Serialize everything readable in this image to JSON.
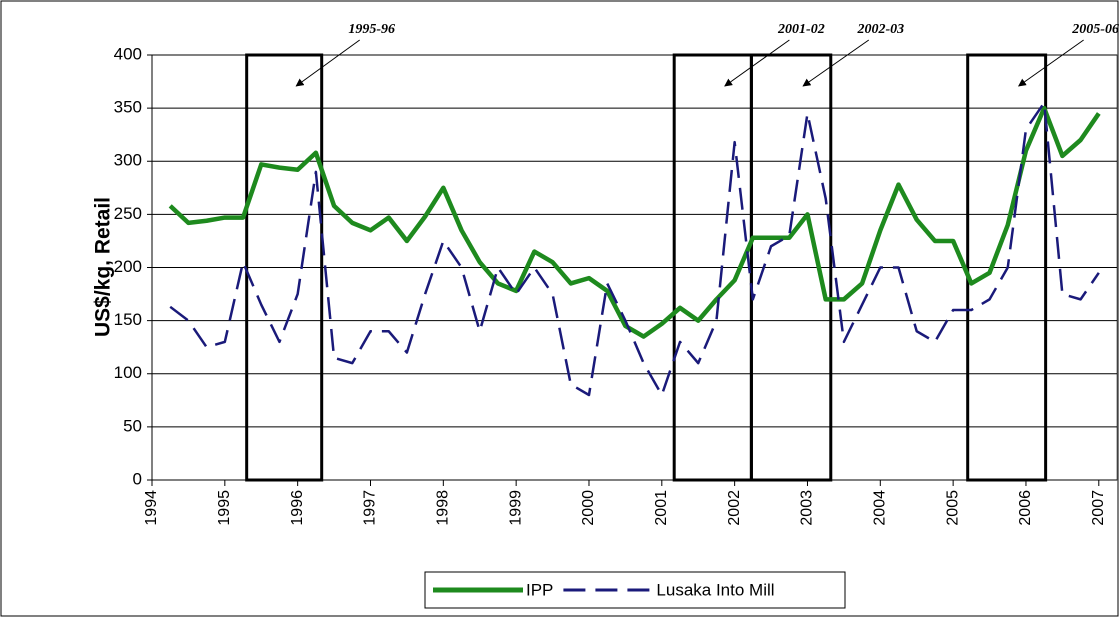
{
  "chart_data": {
    "type": "line",
    "y_label": "US$/kg, Retail",
    "x": [
      1994.25,
      1994.5,
      1994.75,
      1995.0,
      1995.25,
      1995.5,
      1995.75,
      1996.0,
      1996.25,
      1996.5,
      1996.75,
      1997.0,
      1997.25,
      1997.5,
      1997.75,
      1998.0,
      1998.25,
      1998.5,
      1998.75,
      1999.0,
      1999.25,
      1999.5,
      1999.75,
      2000.0,
      2000.25,
      2000.5,
      2000.75,
      2001.0,
      2001.25,
      2001.5,
      2001.75,
      2002.0,
      2002.25,
      2002.5,
      2002.75,
      2003.0,
      2003.25,
      2003.5,
      2003.75,
      2004.0,
      2004.25,
      2004.5,
      2004.75,
      2005.0,
      2005.25,
      2005.5,
      2005.75,
      2006.0,
      2006.25,
      2006.5,
      2006.75,
      2007.0
    ],
    "series": [
      {
        "name": "IPP",
        "color": "#1e8a1e",
        "style": "solid",
        "values": [
          258,
          242,
          244,
          247,
          247,
          297,
          294,
          292,
          308,
          258,
          242,
          235,
          247,
          225,
          248,
          275,
          235,
          205,
          185,
          178,
          215,
          205,
          185,
          190,
          178,
          145,
          135,
          147,
          162,
          150,
          170,
          188,
          228,
          228,
          228,
          250,
          170,
          170,
          185,
          235,
          278,
          245,
          225,
          225,
          185,
          195,
          240,
          310,
          350,
          305,
          320,
          345
        ]
      },
      {
        "name": "Lusaka Into Mill",
        "color": "#1a1a7a",
        "style": "dashed",
        "values": [
          163,
          150,
          125,
          130,
          205,
          165,
          130,
          175,
          290,
          115,
          110,
          140,
          140,
          120,
          175,
          225,
          200,
          140,
          200,
          175,
          200,
          175,
          90,
          80,
          185,
          150,
          110,
          80,
          130,
          110,
          150,
          318,
          170,
          220,
          230,
          345,
          265,
          130,
          165,
          200,
          200,
          140,
          130,
          160,
          160,
          170,
          200,
          330,
          355,
          175,
          170,
          195
        ]
      }
    ],
    "periods": [
      {
        "label": "1995-96",
        "start": 1995.3,
        "end": 1996.33
      },
      {
        "label": "2001-02",
        "start": 2001.17,
        "end": 2002.23
      },
      {
        "label": "2002-03",
        "start": 2002.23,
        "end": 2003.32
      },
      {
        "label": "2005-06",
        "start": 2005.2,
        "end": 2006.27
      }
    ],
    "xlim": [
      1994,
      2007.25
    ],
    "xticks": [
      1994,
      1995,
      1996,
      1997,
      1998,
      1999,
      2000,
      2001,
      2002,
      2003,
      2004,
      2005,
      2006,
      2007
    ],
    "ylim": [
      0,
      400
    ],
    "yticks": [
      0,
      50,
      100,
      150,
      200,
      250,
      300,
      350,
      400
    ],
    "grid": true,
    "legend": "bottom"
  }
}
